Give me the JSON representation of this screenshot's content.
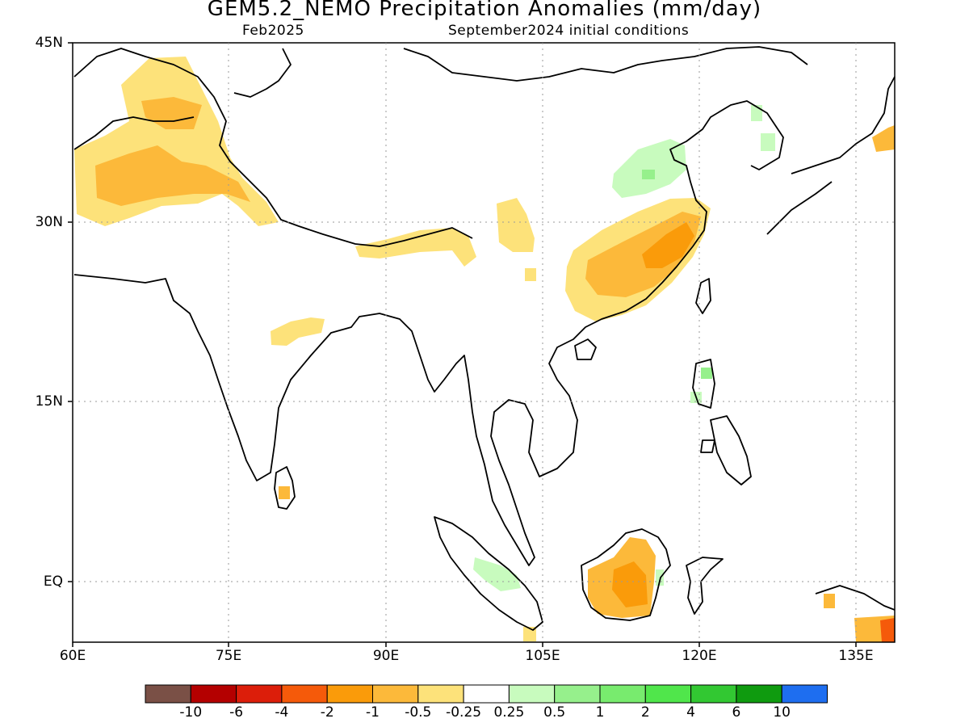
{
  "title": "GEM5.2_NEMO Precipitation Anomalies (mm/day)",
  "subtitle_left": "Feb2025",
  "subtitle_right": "September2024 initial conditions",
  "lat_labels": [
    "45N",
    "30N",
    "15N",
    "EQ"
  ],
  "lon_labels": [
    "60E",
    "75E",
    "90E",
    "105E",
    "120E",
    "135E"
  ],
  "colorbar": {
    "colors": [
      "#7a5046",
      "#b40000",
      "#dc1e0a",
      "#f55a0a",
      "#fa9b0a",
      "#fcb93a",
      "#fde27a",
      "#ffffff",
      "#c8fbbe",
      "#96f08c",
      "#78eb6e",
      "#50e64b",
      "#32c832",
      "#0f9b0f",
      "#1e6ef0"
    ],
    "labels": [
      "-10",
      "-6",
      "-4",
      "-2",
      "-1",
      "-0.5",
      "-0.25",
      "0.25",
      "0.5",
      "1",
      "2",
      "4",
      "6",
      "10"
    ]
  }
}
